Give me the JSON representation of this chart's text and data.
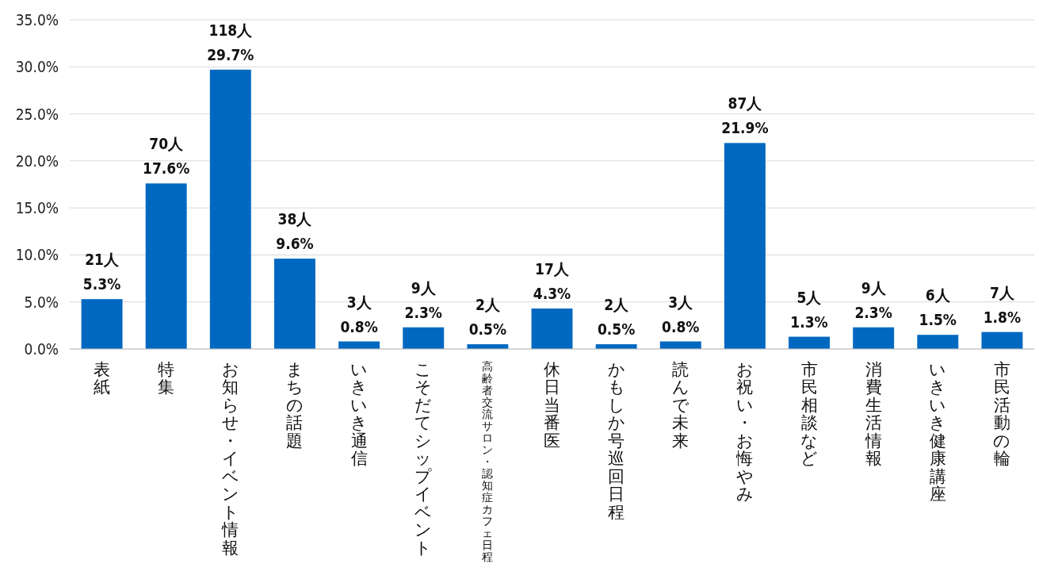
{
  "chart_data": {
    "type": "bar",
    "categories": [
      "表紙",
      "特集",
      "お知らせ・イベント情報",
      "まちの話題",
      "いきいき通信",
      "こそだてシップイベント",
      "高齢者交流サロン・認知症カフェ日程",
      "休日当番医",
      "かもしか号巡回日程",
      "読んで未来",
      "お祝い・お悔やみ",
      "市民相談など",
      "消費生活情報",
      "いきいき健康講座",
      "市民活動の輪"
    ],
    "values": [
      5.3,
      17.6,
      29.7,
      9.6,
      0.8,
      2.3,
      0.5,
      4.3,
      0.5,
      0.8,
      21.9,
      1.3,
      2.3,
      1.5,
      1.8
    ],
    "value_labels": [
      "21人\n5.3%",
      "70人\n17.6%",
      "118人\n29.7%",
      "38人\n9.6%",
      "3人\n0.8%",
      "9人\n2.3%",
      "2人\n0.5%",
      "17人\n4.3%",
      "2人\n0.5%",
      "3人\n0.8%",
      "87人\n21.9%",
      "5人\n1.3%",
      "9人\n2.3%",
      "6人\n1.5%",
      "7人\n1.8%"
    ],
    "color": "#0068c0",
    "ylim": [
      0,
      35
    ],
    "yticks": [
      {
        "value": 0,
        "label": "0.0%"
      },
      {
        "value": 5,
        "label": "5.0%"
      },
      {
        "value": 10,
        "label": "10.0%"
      },
      {
        "value": 15,
        "label": "15.0%"
      },
      {
        "value": 20,
        "label": "20.0%"
      },
      {
        "value": 25,
        "label": "25.0%"
      },
      {
        "value": 30,
        "label": "30.0%"
      },
      {
        "value": 35,
        "label": "35.0%"
      }
    ],
    "grid": "y"
  }
}
